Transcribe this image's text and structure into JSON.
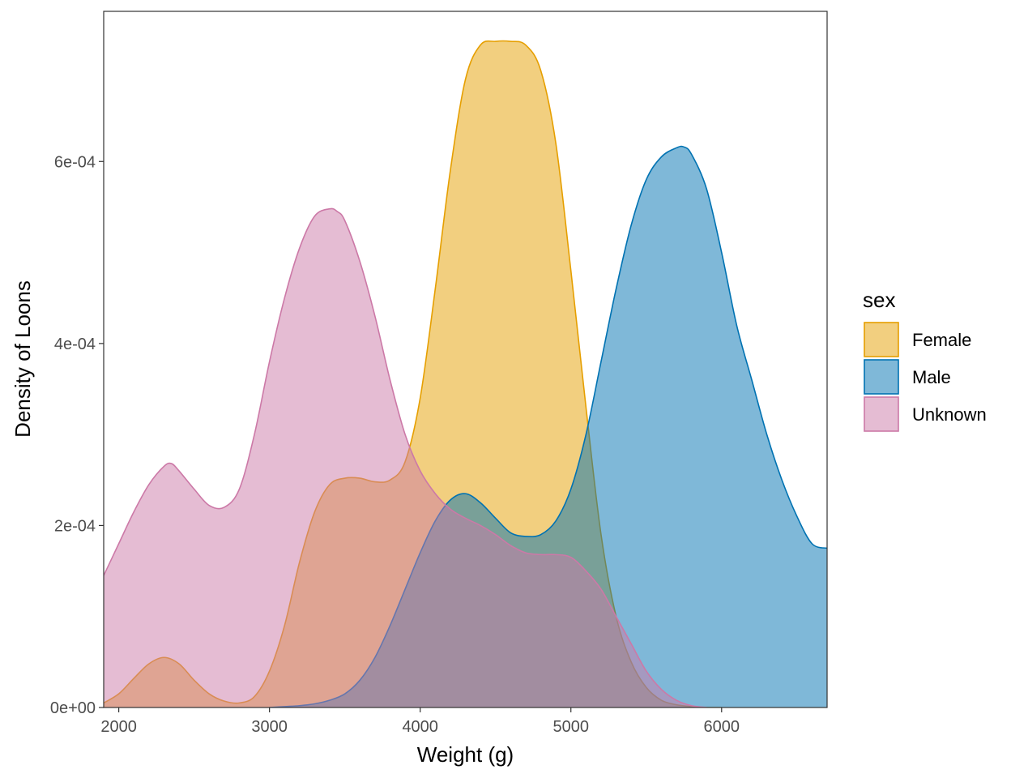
{
  "chart_data": {
    "type": "area",
    "subtype": "density",
    "xlabel": "Weight (g)",
    "ylabel": "Density of Loons",
    "xlim": [
      1900,
      6700
    ],
    "ylim": [
      0,
      0.000765
    ],
    "x_ticks": [
      2000,
      3000,
      4000,
      5000,
      6000
    ],
    "y_ticks": [
      0,
      0.0002,
      0.0004,
      0.0006
    ],
    "y_tick_labels": [
      "0e+00",
      "2e-04",
      "4e-04",
      "6e-04"
    ],
    "x_tick_labels": [
      "2000",
      "3000",
      "4000",
      "5000",
      "6000"
    ],
    "grid": false,
    "legend": {
      "title": "sex",
      "position": "right"
    },
    "series": [
      {
        "name": "Female",
        "color": "#E69F00",
        "x": [
          1900,
          2000,
          2100,
          2200,
          2300,
          2400,
          2500,
          2600,
          2700,
          2800,
          2900,
          3000,
          3100,
          3200,
          3300,
          3400,
          3500,
          3600,
          3700,
          3800,
          3900,
          4000,
          4100,
          4200,
          4300,
          4400,
          4500,
          4600,
          4700,
          4800,
          4900,
          5000,
          5100,
          5200,
          5300,
          5400,
          5500,
          5600,
          5700,
          5800,
          5900,
          6000
        ],
        "values": [
          5e-06,
          1.5e-05,
          3.2e-05,
          4.8e-05,
          5.5e-05,
          4.8e-05,
          3e-05,
          1.5e-05,
          7e-06,
          5e-06,
          1.2e-05,
          4e-05,
          9e-05,
          0.00016,
          0.000215,
          0.000245,
          0.000252,
          0.000252,
          0.000248,
          0.00025,
          0.00027,
          0.00034,
          0.00046,
          0.00059,
          0.00069,
          0.000728,
          0.000732,
          0.000732,
          0.000728,
          0.0007,
          0.00062,
          0.00048,
          0.00033,
          0.00019,
          0.0001,
          5e-05,
          2.2e-05,
          8e-06,
          3e-06,
          1e-06,
          0.0,
          0.0
        ]
      },
      {
        "name": "Male",
        "color": "#0072B2",
        "x": [
          3000,
          3100,
          3200,
          3300,
          3400,
          3500,
          3600,
          3700,
          3800,
          3900,
          4000,
          4100,
          4200,
          4300,
          4400,
          4500,
          4600,
          4700,
          4800,
          4900,
          5000,
          5100,
          5200,
          5300,
          5400,
          5500,
          5600,
          5700,
          5750,
          5800,
          5900,
          6000,
          6100,
          6200,
          6300,
          6400,
          6500,
          6600,
          6700
        ],
        "values": [
          0.0,
          1e-06,
          2e-06,
          4e-06,
          8e-06,
          1.5e-05,
          3e-05,
          5.5e-05,
          9e-05,
          0.00013,
          0.00017,
          0.000205,
          0.000228,
          0.000235,
          0.000225,
          0.000208,
          0.000192,
          0.000188,
          0.00019,
          0.000205,
          0.00024,
          0.0003,
          0.00038,
          0.00046,
          0.00053,
          0.00058,
          0.000605,
          0.000615,
          0.000616,
          0.000608,
          0.00057,
          0.0005,
          0.00042,
          0.00036,
          0.0003,
          0.00025,
          0.00021,
          0.00018,
          0.000175
        ]
      },
      {
        "name": "Unknown",
        "color": "#CC79A7",
        "x": [
          1900,
          2000,
          2100,
          2200,
          2300,
          2350,
          2400,
          2500,
          2600,
          2700,
          2800,
          2900,
          3000,
          3100,
          3200,
          3300,
          3400,
          3450,
          3500,
          3600,
          3700,
          3800,
          3900,
          4000,
          4100,
          4200,
          4300,
          4400,
          4500,
          4600,
          4700,
          4800,
          4900,
          5000,
          5100,
          5200,
          5300,
          5400,
          5500,
          5600,
          5700,
          5800,
          5900
        ],
        "values": [
          0.000145,
          0.00018,
          0.000215,
          0.000245,
          0.000265,
          0.000268,
          0.00026,
          0.00024,
          0.000222,
          0.00022,
          0.00024,
          0.0003,
          0.00038,
          0.00045,
          0.000505,
          0.00054,
          0.000548,
          0.000545,
          0.000535,
          0.00049,
          0.00043,
          0.00036,
          0.0003,
          0.00026,
          0.000235,
          0.000218,
          0.000208,
          0.0002,
          0.00019,
          0.000178,
          0.00017,
          0.000168,
          0.000168,
          0.000165,
          0.00015,
          0.00013,
          0.0001,
          7e-05,
          4e-05,
          2e-05,
          8e-06,
          2e-06,
          0.0
        ]
      }
    ]
  }
}
